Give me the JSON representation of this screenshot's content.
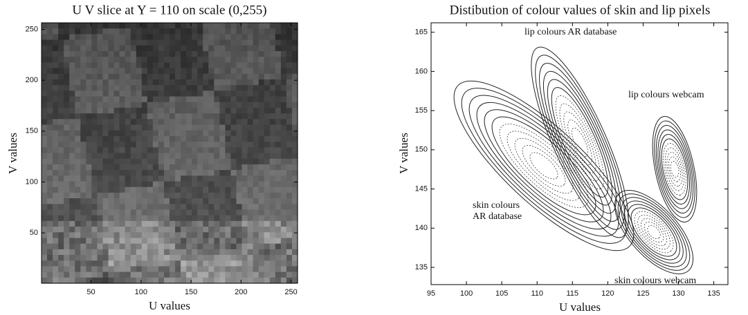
{
  "chart_data": [
    {
      "type": "image",
      "title": "U V slice at Y = 110 on scale (0,255)",
      "x_label": "U values",
      "y_label": "V values",
      "xlim": [
        0.5,
        256.5
      ],
      "xticks": [
        50,
        100,
        150,
        200,
        250
      ],
      "ylim": [
        0.5,
        256.5
      ],
      "yticks": [
        50,
        100,
        150,
        200,
        250
      ]
    },
    {
      "type": "contour",
      "title": "Distibution of colour values of skin and lip pixels",
      "x_label": "U values",
      "y_label": "V values",
      "xlim": [
        95,
        137
      ],
      "xticks": [
        95,
        100,
        105,
        110,
        115,
        120,
        125,
        130,
        135
      ],
      "ylim": [
        132.8,
        166.2
      ],
      "yticks": [
        135,
        140,
        145,
        150,
        155,
        160,
        165
      ],
      "annotations": [
        "lip colours AR database",
        "lip colours webcam",
        "skin colours",
        "AR database",
        "skin colours webcam"
      ]
    }
  ]
}
